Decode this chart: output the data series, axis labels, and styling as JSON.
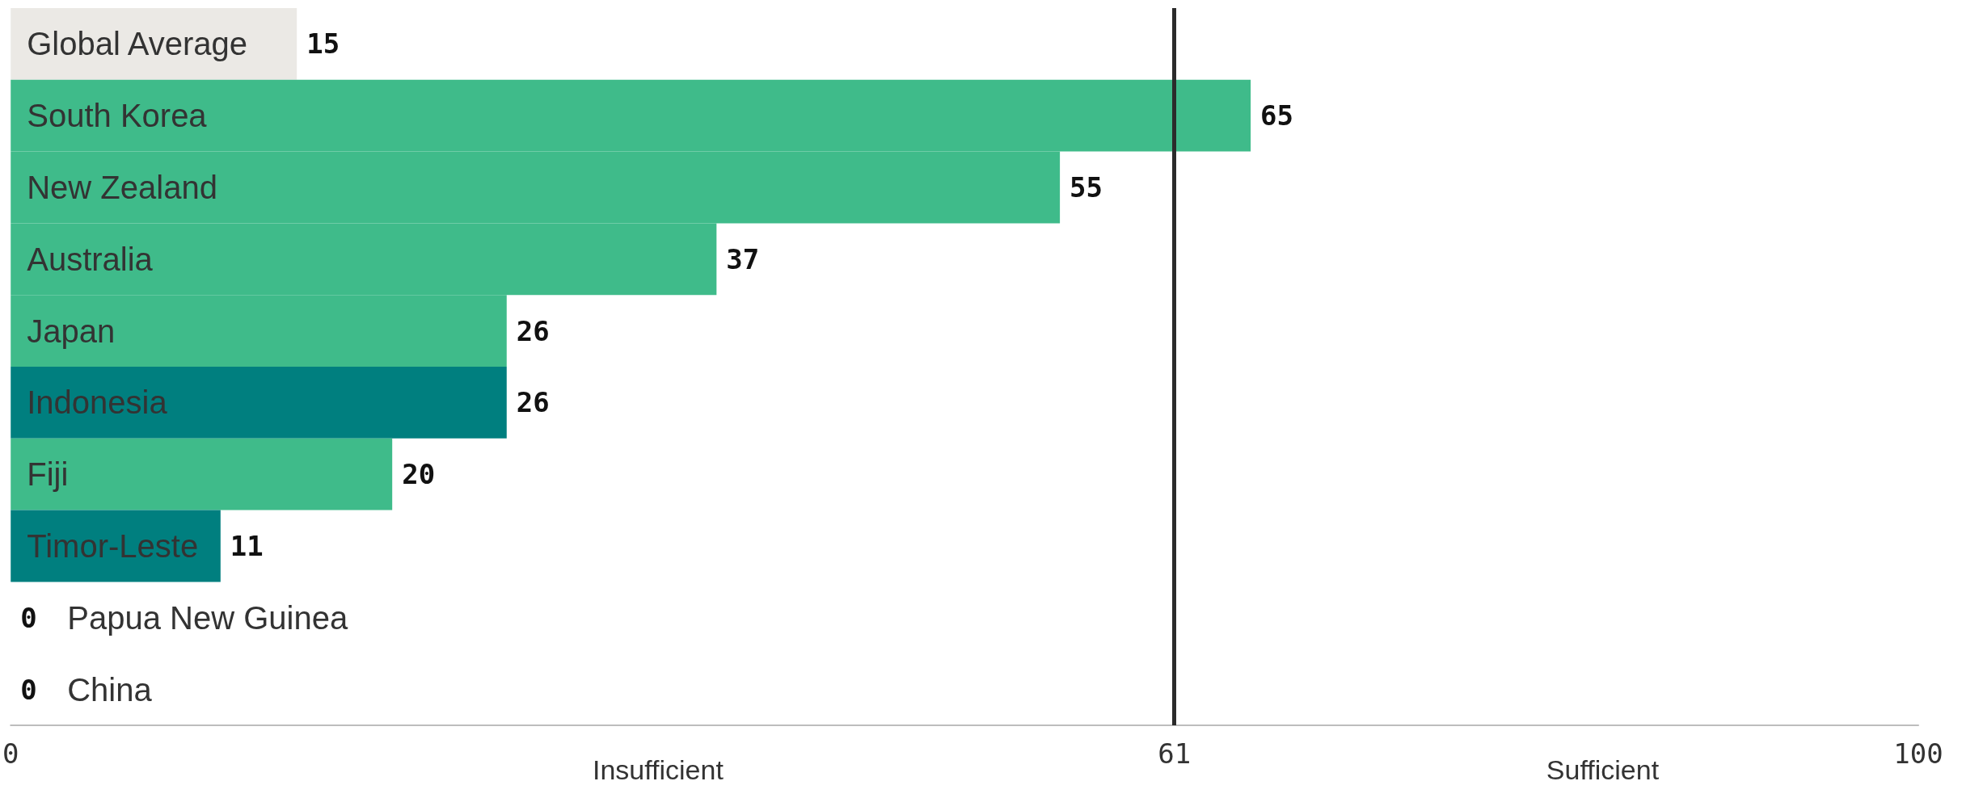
{
  "chart_data": {
    "type": "bar",
    "orientation": "horizontal",
    "categories": [
      "Global Average",
      "South Korea",
      "New Zealand",
      "Australia",
      "Japan",
      "Indonesia",
      "Fiji",
      "Timor-Leste",
      "Papua New Guinea",
      "China"
    ],
    "values": [
      15,
      65,
      55,
      37,
      26,
      26,
      20,
      11,
      0,
      0
    ],
    "colors": [
      "#ebe9e5",
      "#3fbb8a",
      "#3fbb8a",
      "#3fbb8a",
      "#3fbb8a",
      "#007f7f",
      "#3fbb8a",
      "#007f7f",
      "#3fbb8a",
      "#3fbb8a"
    ],
    "value_labels": [
      "15",
      "65",
      "55",
      "37",
      "26",
      "26",
      "20",
      "11",
      "0",
      "0"
    ],
    "xlim": [
      0,
      100
    ],
    "xticks": [
      0,
      61,
      100
    ],
    "ref_lines": [
      {
        "axis": "x",
        "value": 61,
        "color": "#2b2b2b"
      }
    ],
    "annotations": [
      "Insufficient",
      "Sufficient"
    ],
    "grid": false
  }
}
